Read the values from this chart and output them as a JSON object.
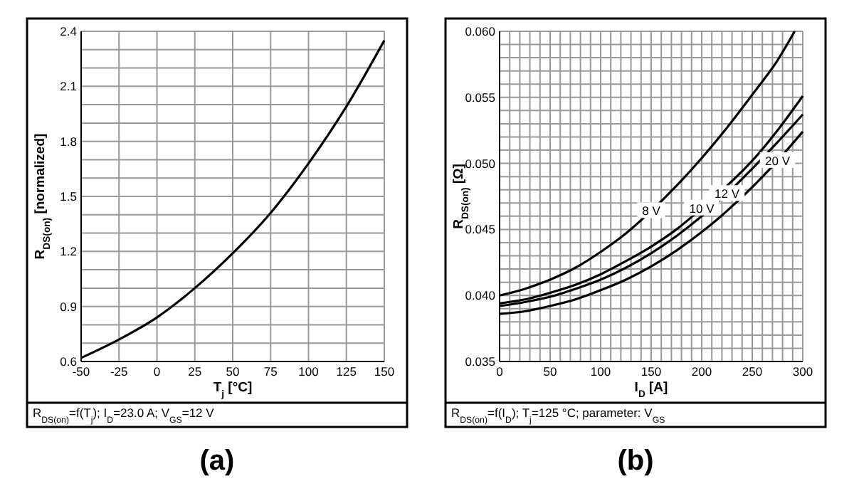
{
  "chart_data": [
    {
      "type": "line",
      "title": "(a)",
      "xlabel": "T$_{j}$ [°C]",
      "ylabel": "R$_{DS(on)}$ [normalized]",
      "annotations": [
        "R$_{DS(on)}$=f(T$_{j}$); I$_{D}$=23.0 A; V$_{GS}$=12 V"
      ],
      "x": [
        -50,
        -25,
        0,
        25,
        50,
        75,
        100,
        125,
        150
      ],
      "series": [
        {
          "color": "#000000",
          "values": [
            0.62,
            0.72,
            0.84,
            1.0,
            1.19,
            1.41,
            1.68,
            1.99,
            2.35
          ]
        }
      ],
      "xlim": [
        -50,
        150
      ],
      "xticks": [
        -50,
        -25,
        0,
        25,
        50,
        75,
        100,
        125,
        150
      ],
      "ylim": [
        0.6,
        2.4
      ],
      "yticks": [
        0.6,
        {
          "value": 0.7,
          "label": null
        },
        {
          "value": 0.8,
          "label": null
        },
        0.9,
        {
          "value": 1.0,
          "label": null
        },
        {
          "value": 1.1,
          "label": null
        },
        1.2,
        {
          "value": 1.3,
          "label": null
        },
        {
          "value": 1.4,
          "label": null
        },
        1.5,
        {
          "value": 1.6,
          "label": null
        },
        {
          "value": 1.7,
          "label": null
        },
        1.8,
        {
          "value": 1.9,
          "label": null
        },
        {
          "value": 2.0,
          "label": null
        },
        2.1,
        {
          "value": 2.2,
          "label": null
        },
        {
          "value": 2.3,
          "label": null
        },
        2.4
      ],
      "grid": true,
      "marker": "none",
      "line_style": "solid"
    },
    {
      "type": "line",
      "title": "(b)",
      "xlabel": "I$_{D}$ [A]",
      "ylabel": "R$_{DS(on)}$ [Ω]",
      "annotations": [
        "R$_{DS(on)}$=f(I$_{D}$); T$_{j}$=125 °C; parameter: V$_{GS}$"
      ],
      "x": [
        0,
        25,
        50,
        75,
        100,
        125,
        150,
        175,
        200,
        225,
        250,
        275,
        300
      ],
      "series": [
        {
          "name": "8 V",
          "color": "#000000",
          "x": [
            0,
            25,
            50,
            75,
            100,
            125,
            150,
            175,
            200,
            225,
            250,
            275,
            292
          ],
          "values": [
            0.04,
            0.0405,
            0.0412,
            0.0421,
            0.0433,
            0.0447,
            0.0464,
            0.0483,
            0.0504,
            0.0527,
            0.0552,
            0.0578,
            0.06
          ]
        },
        {
          "name": "10 V",
          "color": "#000000",
          "values": [
            0.0394,
            0.0397,
            0.0402,
            0.0408,
            0.0416,
            0.0426,
            0.0437,
            0.045,
            0.0466,
            0.0483,
            0.0502,
            0.0525,
            0.0551
          ]
        },
        {
          "name": "12 V",
          "color": "#000000",
          "values": [
            0.0392,
            0.0395,
            0.0399,
            0.0405,
            0.0412,
            0.0421,
            0.0432,
            0.0445,
            0.046,
            0.0477,
            0.0496,
            0.0516,
            0.0537
          ]
        },
        {
          "name": "20 V",
          "color": "#000000",
          "values": [
            0.0386,
            0.0388,
            0.0392,
            0.0397,
            0.0404,
            0.0412,
            0.0422,
            0.0434,
            0.0448,
            0.0464,
            0.0482,
            0.0502,
            0.0524
          ]
        }
      ],
      "xlim": [
        0,
        300
      ],
      "xticks": [
        0,
        {
          "value": 10,
          "label": null
        },
        {
          "value": 20,
          "label": null
        },
        {
          "value": 30,
          "label": null
        },
        {
          "value": 40,
          "label": null
        },
        50,
        {
          "value": 60,
          "label": null
        },
        {
          "value": 70,
          "label": null
        },
        {
          "value": 80,
          "label": null
        },
        {
          "value": 90,
          "label": null
        },
        100,
        {
          "value": 110,
          "label": null
        },
        {
          "value": 120,
          "label": null
        },
        {
          "value": 130,
          "label": null
        },
        {
          "value": 140,
          "label": null
        },
        150,
        {
          "value": 160,
          "label": null
        },
        {
          "value": 170,
          "label": null
        },
        {
          "value": 180,
          "label": null
        },
        {
          "value": 190,
          "label": null
        },
        200,
        {
          "value": 210,
          "label": null
        },
        {
          "value": 220,
          "label": null
        },
        {
          "value": 230,
          "label": null
        },
        {
          "value": 240,
          "label": null
        },
        250,
        {
          "value": 260,
          "label": null
        },
        {
          "value": 270,
          "label": null
        },
        {
          "value": 280,
          "label": null
        },
        {
          "value": 290,
          "label": null
        },
        300
      ],
      "ylim": [
        0.035,
        0.06
      ],
      "yticks": [
        {
          "value": 0.035,
          "label": "0.035"
        },
        {
          "value": 0.036,
          "label": null
        },
        {
          "value": 0.037,
          "label": null
        },
        {
          "value": 0.038,
          "label": null
        },
        {
          "value": 0.039,
          "label": null
        },
        {
          "value": 0.04,
          "label": "0.040"
        },
        {
          "value": 0.041,
          "label": null
        },
        {
          "value": 0.042,
          "label": null
        },
        {
          "value": 0.043,
          "label": null
        },
        {
          "value": 0.044,
          "label": null
        },
        {
          "value": 0.045,
          "label": "0.045"
        },
        {
          "value": 0.046,
          "label": null
        },
        {
          "value": 0.047,
          "label": null
        },
        {
          "value": 0.048,
          "label": null
        },
        {
          "value": 0.049,
          "label": null
        },
        {
          "value": 0.05,
          "label": "0.050"
        },
        {
          "value": 0.051,
          "label": null
        },
        {
          "value": 0.052,
          "label": null
        },
        {
          "value": 0.053,
          "label": null
        },
        {
          "value": 0.054,
          "label": null
        },
        {
          "value": 0.055,
          "label": "0.055"
        },
        {
          "value": 0.056,
          "label": null
        },
        {
          "value": 0.057,
          "label": null
        },
        {
          "value": 0.058,
          "label": null
        },
        {
          "value": 0.059,
          "label": null
        },
        {
          "value": 0.06,
          "label": "0.060"
        }
      ],
      "grid": true,
      "marker": "none",
      "line_style": "solid"
    }
  ]
}
